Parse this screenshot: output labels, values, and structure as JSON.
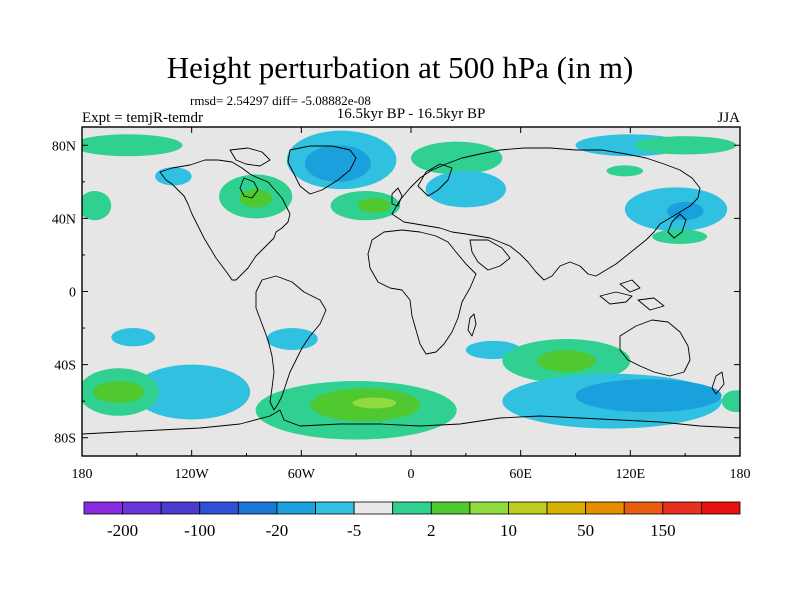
{
  "title": "Height perturbation at 500 hPa (in m)",
  "stats": "rmsd= 2.54297 diff= -5.08882e-08",
  "experiment": "Expt = temjR-temdr",
  "period": "16.5kyr BP - 16.5kyr BP",
  "season": "JJA",
  "map": {
    "projection": "cylindrical-equidistant",
    "lon_range": [
      -180,
      180
    ],
    "lat_range": [
      -90,
      90
    ],
    "ocean_fill": "#e6e6e6",
    "coastline_color": "#000000",
    "y_ticks": [
      {
        "lat": 80,
        "label": "80N"
      },
      {
        "lat": 40,
        "label": "40N"
      },
      {
        "lat": 0,
        "label": "0"
      },
      {
        "lat": -40,
        "label": "40S"
      },
      {
        "lat": -80,
        "label": "80S"
      }
    ],
    "x_ticks": [
      {
        "lon": -180,
        "label": "180"
      },
      {
        "lon": -120,
        "label": "120W"
      },
      {
        "lon": -60,
        "label": "60W"
      },
      {
        "lon": 0,
        "label": "0"
      },
      {
        "lon": 60,
        "label": "60E"
      },
      {
        "lon": 120,
        "label": "120E"
      },
      {
        "lon": 180,
        "label": "180"
      }
    ]
  },
  "colorbar": {
    "colors": [
      "#8a2be2",
      "#6a35d8",
      "#4a3ccc",
      "#3050d8",
      "#1a78d4",
      "#1aa0dc",
      "#30c0e0",
      "#e8e8e8",
      "#30d090",
      "#50c830",
      "#90dc40",
      "#c0cc20",
      "#d8b000",
      "#e88c00",
      "#e85c10",
      "#e83020",
      "#e81010"
    ],
    "labels": [
      {
        "after_box": 1,
        "text": "-200"
      },
      {
        "after_box": 3,
        "text": "-100"
      },
      {
        "after_box": 5,
        "text": "-20"
      },
      {
        "after_box": 7,
        "text": "-5"
      },
      {
        "after_box": 9,
        "text": "2"
      },
      {
        "after_box": 11,
        "text": "10"
      },
      {
        "after_box": 13,
        "text": "50"
      },
      {
        "after_box": 15,
        "text": "150"
      }
    ]
  },
  "field_regions": [
    {
      "name": "arctic-pacific-positive",
      "level": "pos1",
      "lat": 80,
      "lon": -155,
      "rlat": 6,
      "rlon": 30
    },
    {
      "name": "arctic-pacific-positive-core",
      "level": "pos1b",
      "lat": 81,
      "lon": -150,
      "rlat": 3,
      "rlon": 16
    },
    {
      "name": "greenland-negative",
      "level": "neg1",
      "lat": 72,
      "lon": -38,
      "rlat": 16,
      "rlon": 30
    },
    {
      "name": "greenland-negative-core",
      "level": "neg2",
      "lat": 70,
      "lon": -40,
      "rlat": 10,
      "rlon": 18
    },
    {
      "name": "north-america-positive",
      "level": "pos1",
      "lat": 52,
      "lon": -85,
      "rlat": 12,
      "rlon": 20
    },
    {
      "name": "north-america-positive-core",
      "level": "pos2",
      "lat": 51,
      "lon": -85,
      "rlat": 5,
      "rlon": 9
    },
    {
      "name": "east-pacific-negative",
      "level": "neg1",
      "lat": 63,
      "lon": -130,
      "rlat": 5,
      "rlon": 10
    },
    {
      "name": "north-pacific-west-positive",
      "level": "pos1",
      "lat": 47,
      "lon": -173,
      "rlat": 8,
      "rlon": 9
    },
    {
      "name": "north-atlantic-positive",
      "level": "pos1",
      "lat": 47,
      "lon": -25,
      "rlat": 8,
      "rlon": 19
    },
    {
      "name": "north-atlantic-positive-core",
      "level": "pos2",
      "lat": 47,
      "lon": -20,
      "rlat": 4,
      "rlon": 9
    },
    {
      "name": "eurasia-positive",
      "level": "pos1",
      "lat": 73,
      "lon": 25,
      "rlat": 9,
      "rlon": 25
    },
    {
      "name": "europe-negative",
      "level": "neg1",
      "lat": 56,
      "lon": 30,
      "rlat": 10,
      "rlon": 22
    },
    {
      "name": "siberia-negative",
      "level": "neg1",
      "lat": 80,
      "lon": 120,
      "rlat": 6,
      "rlon": 30
    },
    {
      "name": "siberia-positive",
      "level": "pos1",
      "lat": 80,
      "lon": 150,
      "rlat": 5,
      "rlon": 28
    },
    {
      "name": "central-asia-positive",
      "level": "pos1",
      "lat": 66,
      "lon": 117,
      "rlat": 3,
      "rlon": 10
    },
    {
      "name": "east-asia-negative",
      "level": "neg1",
      "lat": 45,
      "lon": 145,
      "rlat": 12,
      "rlon": 28
    },
    {
      "name": "east-asia-negative-core",
      "level": "neg2",
      "lat": 44,
      "lon": 150,
      "rlat": 5,
      "rlon": 10
    },
    {
      "name": "north-pacific-east-positive",
      "level": "pos1",
      "lat": 30,
      "lon": 147,
      "rlat": 4,
      "rlon": 15
    },
    {
      "name": "south-pacific-small-negative",
      "level": "neg1",
      "lat": -25,
      "lon": -152,
      "rlat": 5,
      "rlon": 12
    },
    {
      "name": "south-america-negative",
      "level": "neg1",
      "lat": -26,
      "lon": -65,
      "rlat": 6,
      "rlon": 14
    },
    {
      "name": "southeast-pacific-negative",
      "level": "neg1",
      "lat": -55,
      "lon": -120,
      "rlat": 15,
      "rlon": 32
    },
    {
      "name": "south-pacific-positive",
      "level": "pos1",
      "lat": -55,
      "lon": -160,
      "rlat": 13,
      "rlon": 22
    },
    {
      "name": "south-pacific-positive-core",
      "level": "pos2",
      "lat": -55,
      "lon": -160,
      "rlat": 6,
      "rlon": 14
    },
    {
      "name": "south-atlantic-positive",
      "level": "pos1",
      "lat": -65,
      "lon": -30,
      "rlat": 16,
      "rlon": 55
    },
    {
      "name": "south-atlantic-positive-core",
      "level": "pos2",
      "lat": -62,
      "lon": -25,
      "rlat": 9,
      "rlon": 30
    },
    {
      "name": "south-atlantic-positive-peak",
      "level": "pos3",
      "lat": -61,
      "lon": -20,
      "rlat": 3,
      "rlon": 12
    },
    {
      "name": "south-africa-negative",
      "level": "neg1",
      "lat": -32,
      "lon": 45,
      "rlat": 5,
      "rlon": 15
    },
    {
      "name": "indian-ocean-positive",
      "level": "pos1",
      "lat": -38,
      "lon": 85,
      "rlat": 12,
      "rlon": 35
    },
    {
      "name": "indian-ocean-positive-core",
      "level": "pos2",
      "lat": -38,
      "lon": 85,
      "rlat": 6,
      "rlon": 16
    },
    {
      "name": "southern-ocean-negative",
      "level": "neg1",
      "lat": -60,
      "lon": 110,
      "rlat": 15,
      "rlon": 60
    },
    {
      "name": "southern-ocean-negative-core",
      "level": "neg2",
      "lat": -57,
      "lon": 130,
      "rlat": 9,
      "rlon": 40
    },
    {
      "name": "dateline-south-positive",
      "level": "pos1",
      "lat": -60,
      "lon": 178,
      "rlat": 6,
      "rlon": 8
    }
  ],
  "level_colors": {
    "neg1": "#30c0e0",
    "neg2": "#1aa0dc",
    "pos1": "#30d090",
    "pos1b": "#30d090",
    "pos2": "#50c830",
    "pos3": "#90dc40"
  }
}
